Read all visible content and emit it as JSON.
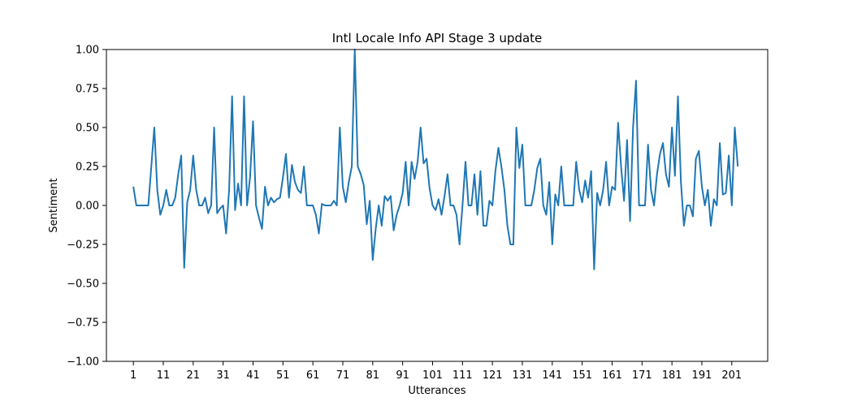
{
  "chart_data": {
    "type": "line",
    "title": "Intl Locale Info API Stage 3 update",
    "xlabel": "Utterances",
    "ylabel": "Sentiment",
    "ylim": [
      -1.0,
      1.0
    ],
    "xlim": [
      -8,
      213
    ],
    "grid": false,
    "line_color": "#1f77b4",
    "x_ticks": [
      1,
      11,
      21,
      31,
      41,
      51,
      61,
      71,
      81,
      91,
      101,
      111,
      121,
      131,
      141,
      151,
      161,
      171,
      181,
      191,
      201
    ],
    "y_ticks": [
      -1.0,
      -0.75,
      -0.5,
      -0.25,
      0.0,
      0.25,
      0.5,
      0.75,
      1.0
    ],
    "y_tick_labels": [
      "−1.00",
      "−0.75",
      "−0.50",
      "−0.25",
      "0.00",
      "0.25",
      "0.50",
      "0.75",
      "1.00"
    ],
    "series": [
      {
        "x_start": 1,
        "values": [
          0.12,
          0.0,
          0.0,
          0.0,
          0.0,
          0.0,
          0.25,
          0.5,
          0.1,
          -0.06,
          0.0,
          0.1,
          0.0,
          0.0,
          0.05,
          0.2,
          0.32,
          -0.4,
          0.02,
          0.1,
          0.32,
          0.1,
          0.0,
          0.0,
          0.05,
          -0.05,
          0.0,
          0.5,
          -0.05,
          -0.02,
          0.0,
          -0.18,
          0.1,
          0.7,
          -0.03,
          0.14,
          0.0,
          0.7,
          0.0,
          0.18,
          0.54,
          0.0,
          -0.08,
          -0.15,
          0.12,
          0.0,
          0.05,
          0.02,
          0.04,
          0.05,
          0.18,
          0.33,
          0.05,
          0.26,
          0.15,
          0.1,
          0.08,
          0.25,
          0.0,
          0.0,
          0.0,
          -0.06,
          -0.18,
          0.01,
          0.0,
          0.0,
          0.0,
          0.03,
          0.0,
          0.5,
          0.12,
          0.02,
          0.15,
          0.25,
          1.0,
          0.25,
          0.2,
          0.13,
          -0.12,
          0.03,
          -0.35,
          -0.15,
          0.0,
          -0.13,
          0.06,
          0.03,
          0.06,
          -0.16,
          -0.06,
          0.0,
          0.08,
          0.28,
          0.0,
          0.28,
          0.17,
          0.28,
          0.5,
          0.27,
          0.3,
          0.11,
          0.0,
          -0.03,
          0.04,
          -0.06,
          0.06,
          0.2,
          0.0,
          0.0,
          -0.06,
          -0.25,
          0.0,
          0.28,
          0.0,
          0.0,
          0.2,
          -0.06,
          0.22,
          -0.13,
          -0.13,
          0.03,
          0.0,
          0.22,
          0.37,
          0.25,
          0.1,
          -0.13,
          -0.25,
          -0.25,
          0.5,
          0.24,
          0.39,
          0.0,
          0.0,
          0.0,
          0.1,
          0.24,
          0.3,
          0.0,
          -0.06,
          0.15,
          -0.25,
          0.07,
          0.0,
          0.25,
          0.0,
          0.0,
          0.0,
          0.0,
          0.28,
          0.1,
          0.02,
          0.16,
          0.05,
          0.22,
          -0.41,
          0.08,
          0.0,
          0.1,
          0.28,
          0.0,
          0.12,
          0.1,
          0.53,
          0.25,
          0.03,
          0.42,
          -0.1,
          0.5,
          0.8,
          0.0,
          0.0,
          0.0,
          0.39,
          0.1,
          0.0,
          0.2,
          0.33,
          0.4,
          0.2,
          0.12,
          0.5,
          0.19,
          0.7,
          0.15,
          -0.13,
          0.0,
          0.0,
          -0.07,
          0.3,
          0.35,
          0.12,
          0.0,
          0.1,
          -0.13,
          0.04,
          0.0,
          0.4,
          0.07,
          0.08,
          0.32,
          0.0,
          0.5,
          0.25
        ]
      }
    ]
  }
}
